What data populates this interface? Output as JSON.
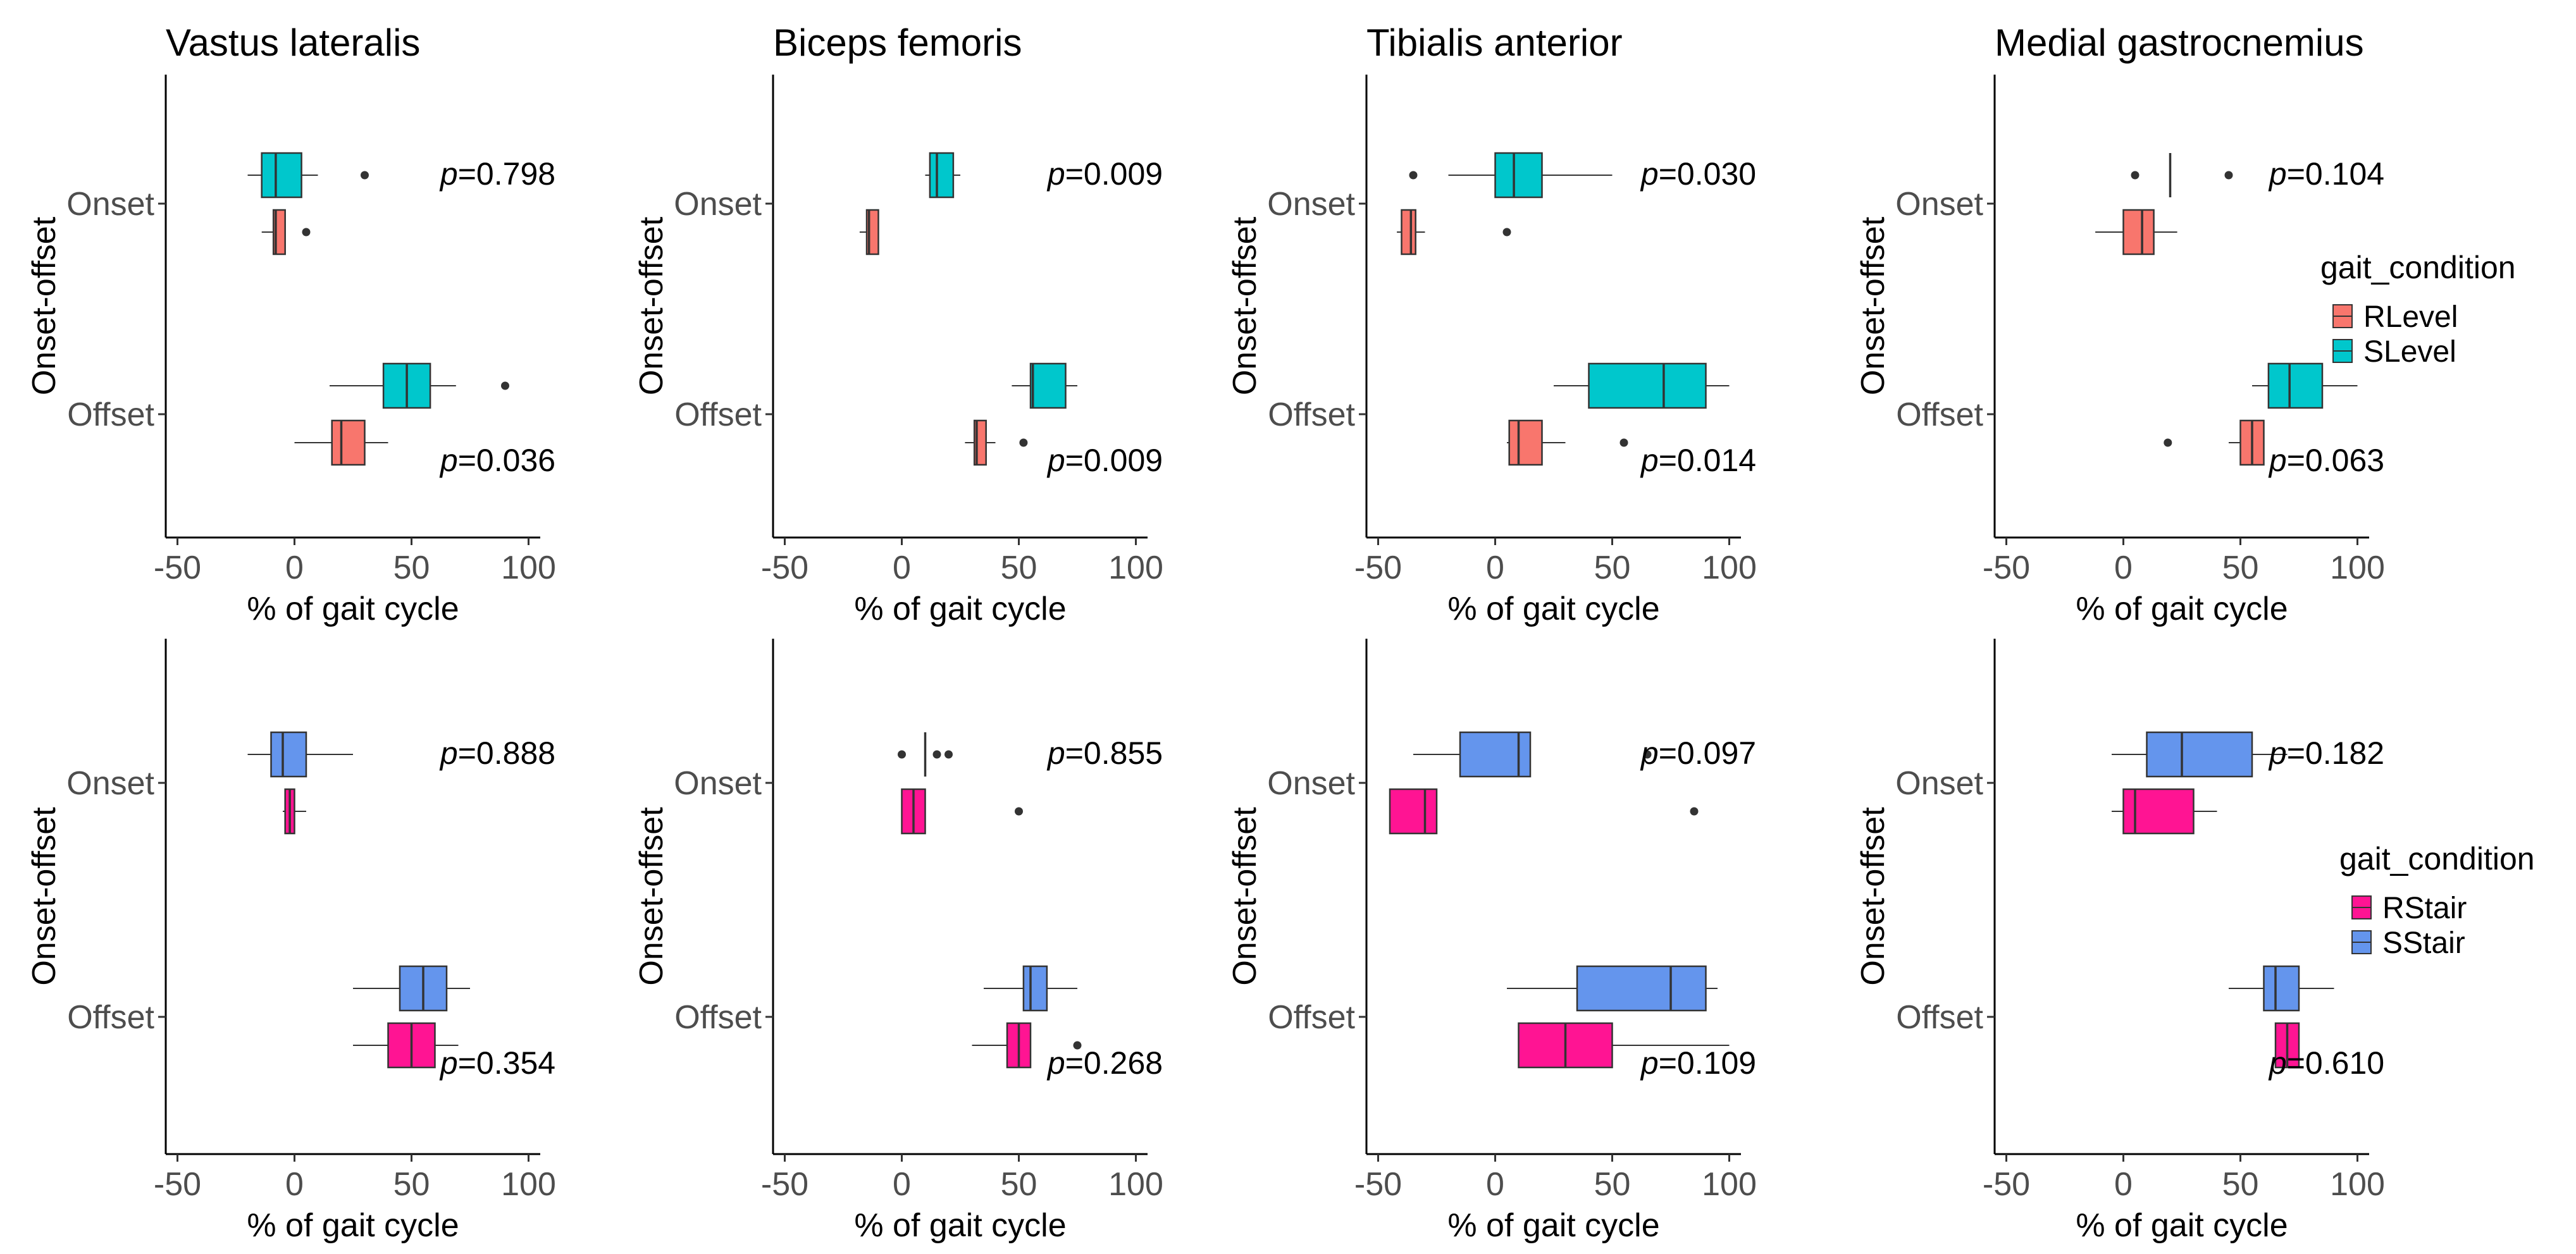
{
  "chart_data": {
    "type": "boxplot",
    "xlabel": "% of gait cycle",
    "ylabel": "Onset-offset",
    "xlim": [
      -55,
      105
    ],
    "x_ticks": [
      -50,
      0,
      50,
      100
    ],
    "x_tick_labels": [
      "-50",
      "0",
      "50",
      "100"
    ],
    "categories": [
      "Onset",
      "Offset"
    ],
    "grid": false,
    "colors": {
      "RLevel": "#F8766D",
      "SLevel": "#00C7CC",
      "RStair": "#FF1493",
      "SStair": "#6495ED"
    },
    "legends": [
      {
        "title": "gait_condition",
        "entries": [
          "RLevel",
          "SLevel"
        ],
        "placement": "right-top-row"
      },
      {
        "title": "gait_condition",
        "entries": [
          "RStair",
          "SStair"
        ],
        "placement": "right-bottom-row"
      }
    ],
    "panels": [
      {
        "title": "Vastus lateralis",
        "comparison": "Level",
        "p_values": [
          {
            "category": "Onset",
            "text": "=0.798"
          },
          {
            "category": "Offset",
            "text": "=0.036"
          }
        ],
        "boxes": [
          {
            "category": "Onset",
            "group": "SLevel",
            "whisker_low": -20,
            "q1": -14,
            "median": -8,
            "q3": 3,
            "whisker_high": 10,
            "outliers": [
              30
            ]
          },
          {
            "category": "Onset",
            "group": "RLevel",
            "whisker_low": -14,
            "q1": -9,
            "median": -8,
            "q3": -4,
            "whisker_high": -4,
            "outliers": [
              5
            ]
          },
          {
            "category": "Offset",
            "group": "SLevel",
            "whisker_low": 15,
            "q1": 38,
            "median": 48,
            "q3": 58,
            "whisker_high": 69,
            "outliers": [
              90
            ]
          },
          {
            "category": "Offset",
            "group": "RLevel",
            "whisker_low": 0,
            "q1": 16,
            "median": 20,
            "q3": 30,
            "whisker_high": 40,
            "outliers": []
          }
        ]
      },
      {
        "title": "Biceps femoris",
        "comparison": "Level",
        "p_values": [
          {
            "category": "Onset",
            "text": "=0.009"
          },
          {
            "category": "Offset",
            "text": "=0.009"
          }
        ],
        "boxes": [
          {
            "category": "Onset",
            "group": "SLevel",
            "whisker_low": 10,
            "q1": 12,
            "median": 15,
            "q3": 22,
            "whisker_high": 25,
            "outliers": []
          },
          {
            "category": "Onset",
            "group": "RLevel",
            "whisker_low": -18,
            "q1": -15,
            "median": -14,
            "q3": -10,
            "whisker_high": -10,
            "outliers": []
          },
          {
            "category": "Offset",
            "group": "SLevel",
            "whisker_low": 47,
            "q1": 55,
            "median": 56,
            "q3": 70,
            "whisker_high": 75,
            "outliers": []
          },
          {
            "category": "Offset",
            "group": "RLevel",
            "whisker_low": 27,
            "q1": 31,
            "median": 32,
            "q3": 36,
            "whisker_high": 40,
            "outliers": [
              52
            ]
          }
        ]
      },
      {
        "title": "Tibialis anterior",
        "comparison": "Level",
        "p_values": [
          {
            "category": "Onset",
            "text": "=0.030"
          },
          {
            "category": "Offset",
            "text": "=0.014"
          }
        ],
        "boxes": [
          {
            "category": "Onset",
            "group": "SLevel",
            "whisker_low": -20,
            "q1": 0,
            "median": 8,
            "q3": 20,
            "whisker_high": 50,
            "outliers": [
              -35
            ]
          },
          {
            "category": "Onset",
            "group": "RLevel",
            "whisker_low": -42,
            "q1": -40,
            "median": -36,
            "q3": -34,
            "whisker_high": -30,
            "outliers": [
              5
            ]
          },
          {
            "category": "Offset",
            "group": "SLevel",
            "whisker_low": 25,
            "q1": 40,
            "median": 72,
            "q3": 90,
            "whisker_high": 100,
            "outliers": []
          },
          {
            "category": "Offset",
            "group": "RLevel",
            "whisker_low": 5,
            "q1": 6,
            "median": 10,
            "q3": 20,
            "whisker_high": 30,
            "outliers": [
              55
            ]
          }
        ]
      },
      {
        "title": "Medial gastrocnemius",
        "comparison": "Level",
        "p_values": [
          {
            "category": "Onset",
            "text": "=0.104"
          },
          {
            "category": "Offset",
            "text": "=0.063"
          }
        ],
        "boxes": [
          {
            "category": "Onset",
            "group": "SLevel",
            "whisker_low": 20,
            "q1": 20,
            "median": 20,
            "q3": 20,
            "whisker_high": 20,
            "outliers": [
              5,
              45
            ]
          },
          {
            "category": "Onset",
            "group": "RLevel",
            "whisker_low": -12,
            "q1": 0,
            "median": 8,
            "q3": 13,
            "whisker_high": 23,
            "outliers": []
          },
          {
            "category": "Offset",
            "group": "SLevel",
            "whisker_low": 55,
            "q1": 62,
            "median": 71,
            "q3": 85,
            "whisker_high": 100,
            "outliers": []
          },
          {
            "category": "Offset",
            "group": "RLevel",
            "whisker_low": 45,
            "q1": 50,
            "median": 55,
            "q3": 60,
            "whisker_high": 60,
            "outliers": [
              19
            ]
          }
        ]
      },
      {
        "title": "",
        "comparison": "Stair",
        "p_values": [
          {
            "category": "Onset",
            "text": "=0.888"
          },
          {
            "category": "Offset",
            "text": "=0.354"
          }
        ],
        "boxes": [
          {
            "category": "Onset",
            "group": "SStair",
            "whisker_low": -20,
            "q1": -10,
            "median": -5,
            "q3": 5,
            "whisker_high": 25,
            "outliers": []
          },
          {
            "category": "Onset",
            "group": "RStair",
            "whisker_low": -5,
            "q1": -4,
            "median": -2,
            "q3": 0,
            "whisker_high": 5,
            "outliers": []
          },
          {
            "category": "Offset",
            "group": "SStair",
            "whisker_low": 25,
            "q1": 45,
            "median": 55,
            "q3": 65,
            "whisker_high": 75,
            "outliers": []
          },
          {
            "category": "Offset",
            "group": "RStair",
            "whisker_low": 25,
            "q1": 40,
            "median": 50,
            "q3": 60,
            "whisker_high": 70,
            "outliers": []
          }
        ]
      },
      {
        "title": "",
        "comparison": "Stair",
        "p_values": [
          {
            "category": "Onset",
            "text": "=0.855"
          },
          {
            "category": "Offset",
            "text": "=0.268"
          }
        ],
        "boxes": [
          {
            "category": "Onset",
            "group": "SStair",
            "whisker_low": 10,
            "q1": 10,
            "median": 10,
            "q3": 10,
            "whisker_high": 10,
            "outliers": [
              0,
              15,
              20
            ]
          },
          {
            "category": "Onset",
            "group": "RStair",
            "whisker_low": 0,
            "q1": 0,
            "median": 5,
            "q3": 10,
            "whisker_high": 10,
            "outliers": [
              50
            ]
          },
          {
            "category": "Offset",
            "group": "SStair",
            "whisker_low": 35,
            "q1": 52,
            "median": 55,
            "q3": 62,
            "whisker_high": 75,
            "outliers": []
          },
          {
            "category": "Offset",
            "group": "RStair",
            "whisker_low": 30,
            "q1": 45,
            "median": 50,
            "q3": 55,
            "whisker_high": 55,
            "outliers": [
              75
            ]
          }
        ]
      },
      {
        "title": "",
        "comparison": "Stair",
        "p_values": [
          {
            "category": "Onset",
            "text": "=0.097"
          },
          {
            "category": "Offset",
            "text": "=0.109"
          }
        ],
        "boxes": [
          {
            "category": "Onset",
            "group": "SStair",
            "whisker_low": -35,
            "q1": -15,
            "median": 10,
            "q3": 15,
            "whisker_high": 15,
            "outliers": [
              65
            ]
          },
          {
            "category": "Onset",
            "group": "RStair",
            "whisker_low": -45,
            "q1": -45,
            "median": -30,
            "q3": -25,
            "whisker_high": -25,
            "outliers": [
              85
            ]
          },
          {
            "category": "Offset",
            "group": "SStair",
            "whisker_low": 5,
            "q1": 35,
            "median": 75,
            "q3": 90,
            "whisker_high": 95,
            "outliers": []
          },
          {
            "category": "Offset",
            "group": "RStair",
            "whisker_low": 10,
            "q1": 10,
            "median": 30,
            "q3": 50,
            "whisker_high": 100,
            "outliers": []
          }
        ]
      },
      {
        "title": "",
        "comparison": "Stair",
        "p_values": [
          {
            "category": "Onset",
            "text": "=0.182"
          },
          {
            "category": "Offset",
            "text": "=0.610"
          }
        ],
        "boxes": [
          {
            "category": "Onset",
            "group": "SStair",
            "whisker_low": -5,
            "q1": 10,
            "median": 25,
            "q3": 55,
            "whisker_high": 70,
            "outliers": []
          },
          {
            "category": "Onset",
            "group": "RStair",
            "whisker_low": -5,
            "q1": 0,
            "median": 5,
            "q3": 30,
            "whisker_high": 40,
            "outliers": []
          },
          {
            "category": "Offset",
            "group": "SStair",
            "whisker_low": 45,
            "q1": 60,
            "median": 65,
            "q3": 75,
            "whisker_high": 90,
            "outliers": []
          },
          {
            "category": "Offset",
            "group": "RStair",
            "whisker_low": 65,
            "q1": 65,
            "median": 70,
            "q3": 75,
            "whisker_high": 75,
            "outliers": []
          }
        ]
      }
    ]
  }
}
